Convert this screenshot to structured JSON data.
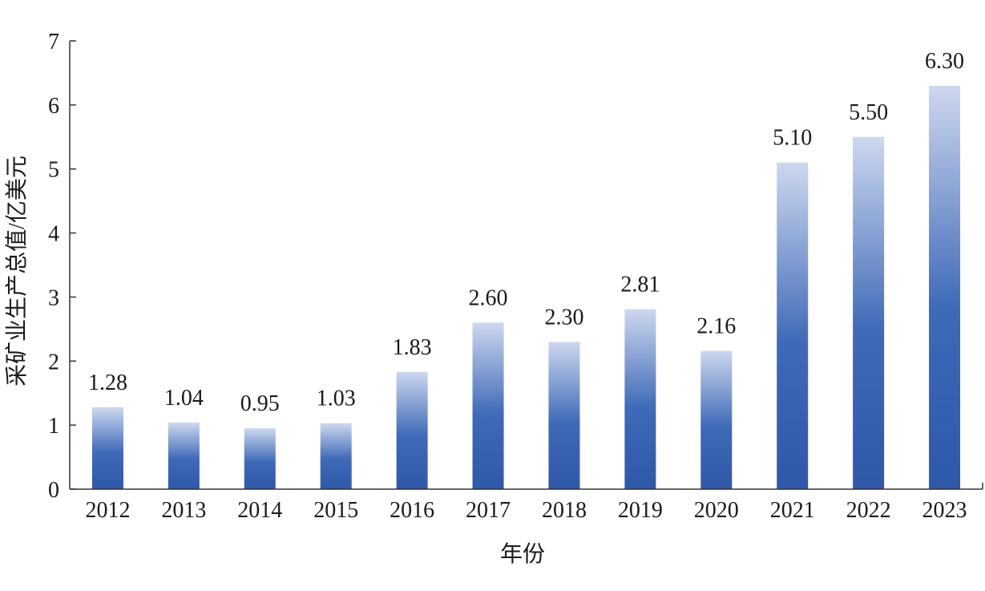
{
  "chart_data": {
    "type": "bar",
    "categories": [
      "2012",
      "2013",
      "2014",
      "2015",
      "2016",
      "2017",
      "2018",
      "2019",
      "2020",
      "2021",
      "2022",
      "2023"
    ],
    "values": [
      1.28,
      1.04,
      0.95,
      1.03,
      1.83,
      2.6,
      2.3,
      2.81,
      2.16,
      5.1,
      5.5,
      6.3
    ],
    "value_labels": [
      "1.28",
      "1.04",
      "0.95",
      "1.03",
      "1.83",
      "2.60",
      "2.30",
      "2.81",
      "2.16",
      "5.10",
      "5.50",
      "6.30"
    ],
    "xlabel": "年份",
    "ylabel": "采矿业生产总值/亿美元",
    "ylim": [
      0,
      7
    ],
    "yticks": [
      "0",
      "1",
      "2",
      "3",
      "4",
      "5",
      "6",
      "7"
    ],
    "grid": false,
    "bar_color_top": "#cdd8ef",
    "bar_color_bottom": "#2f58a8"
  }
}
